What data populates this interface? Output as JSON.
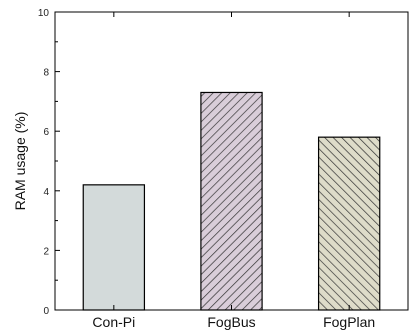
{
  "chart_data": {
    "type": "bar",
    "categories": [
      "Con-Pi",
      "FogBus",
      "FogPlan"
    ],
    "values": [
      4.2,
      7.3,
      5.8
    ],
    "ylabel": "RAM usage (%)",
    "xlabel": "",
    "ylim": [
      0,
      10
    ],
    "yticks": [
      0,
      2,
      4,
      6,
      8,
      10
    ],
    "grid": false,
    "bar_styles": [
      {
        "fill": "#d3dada",
        "pattern": "none"
      },
      {
        "fill": "#d9cdd9",
        "pattern": "hatch-forward"
      },
      {
        "fill": "#dedcc9",
        "pattern": "hatch-back"
      }
    ]
  }
}
